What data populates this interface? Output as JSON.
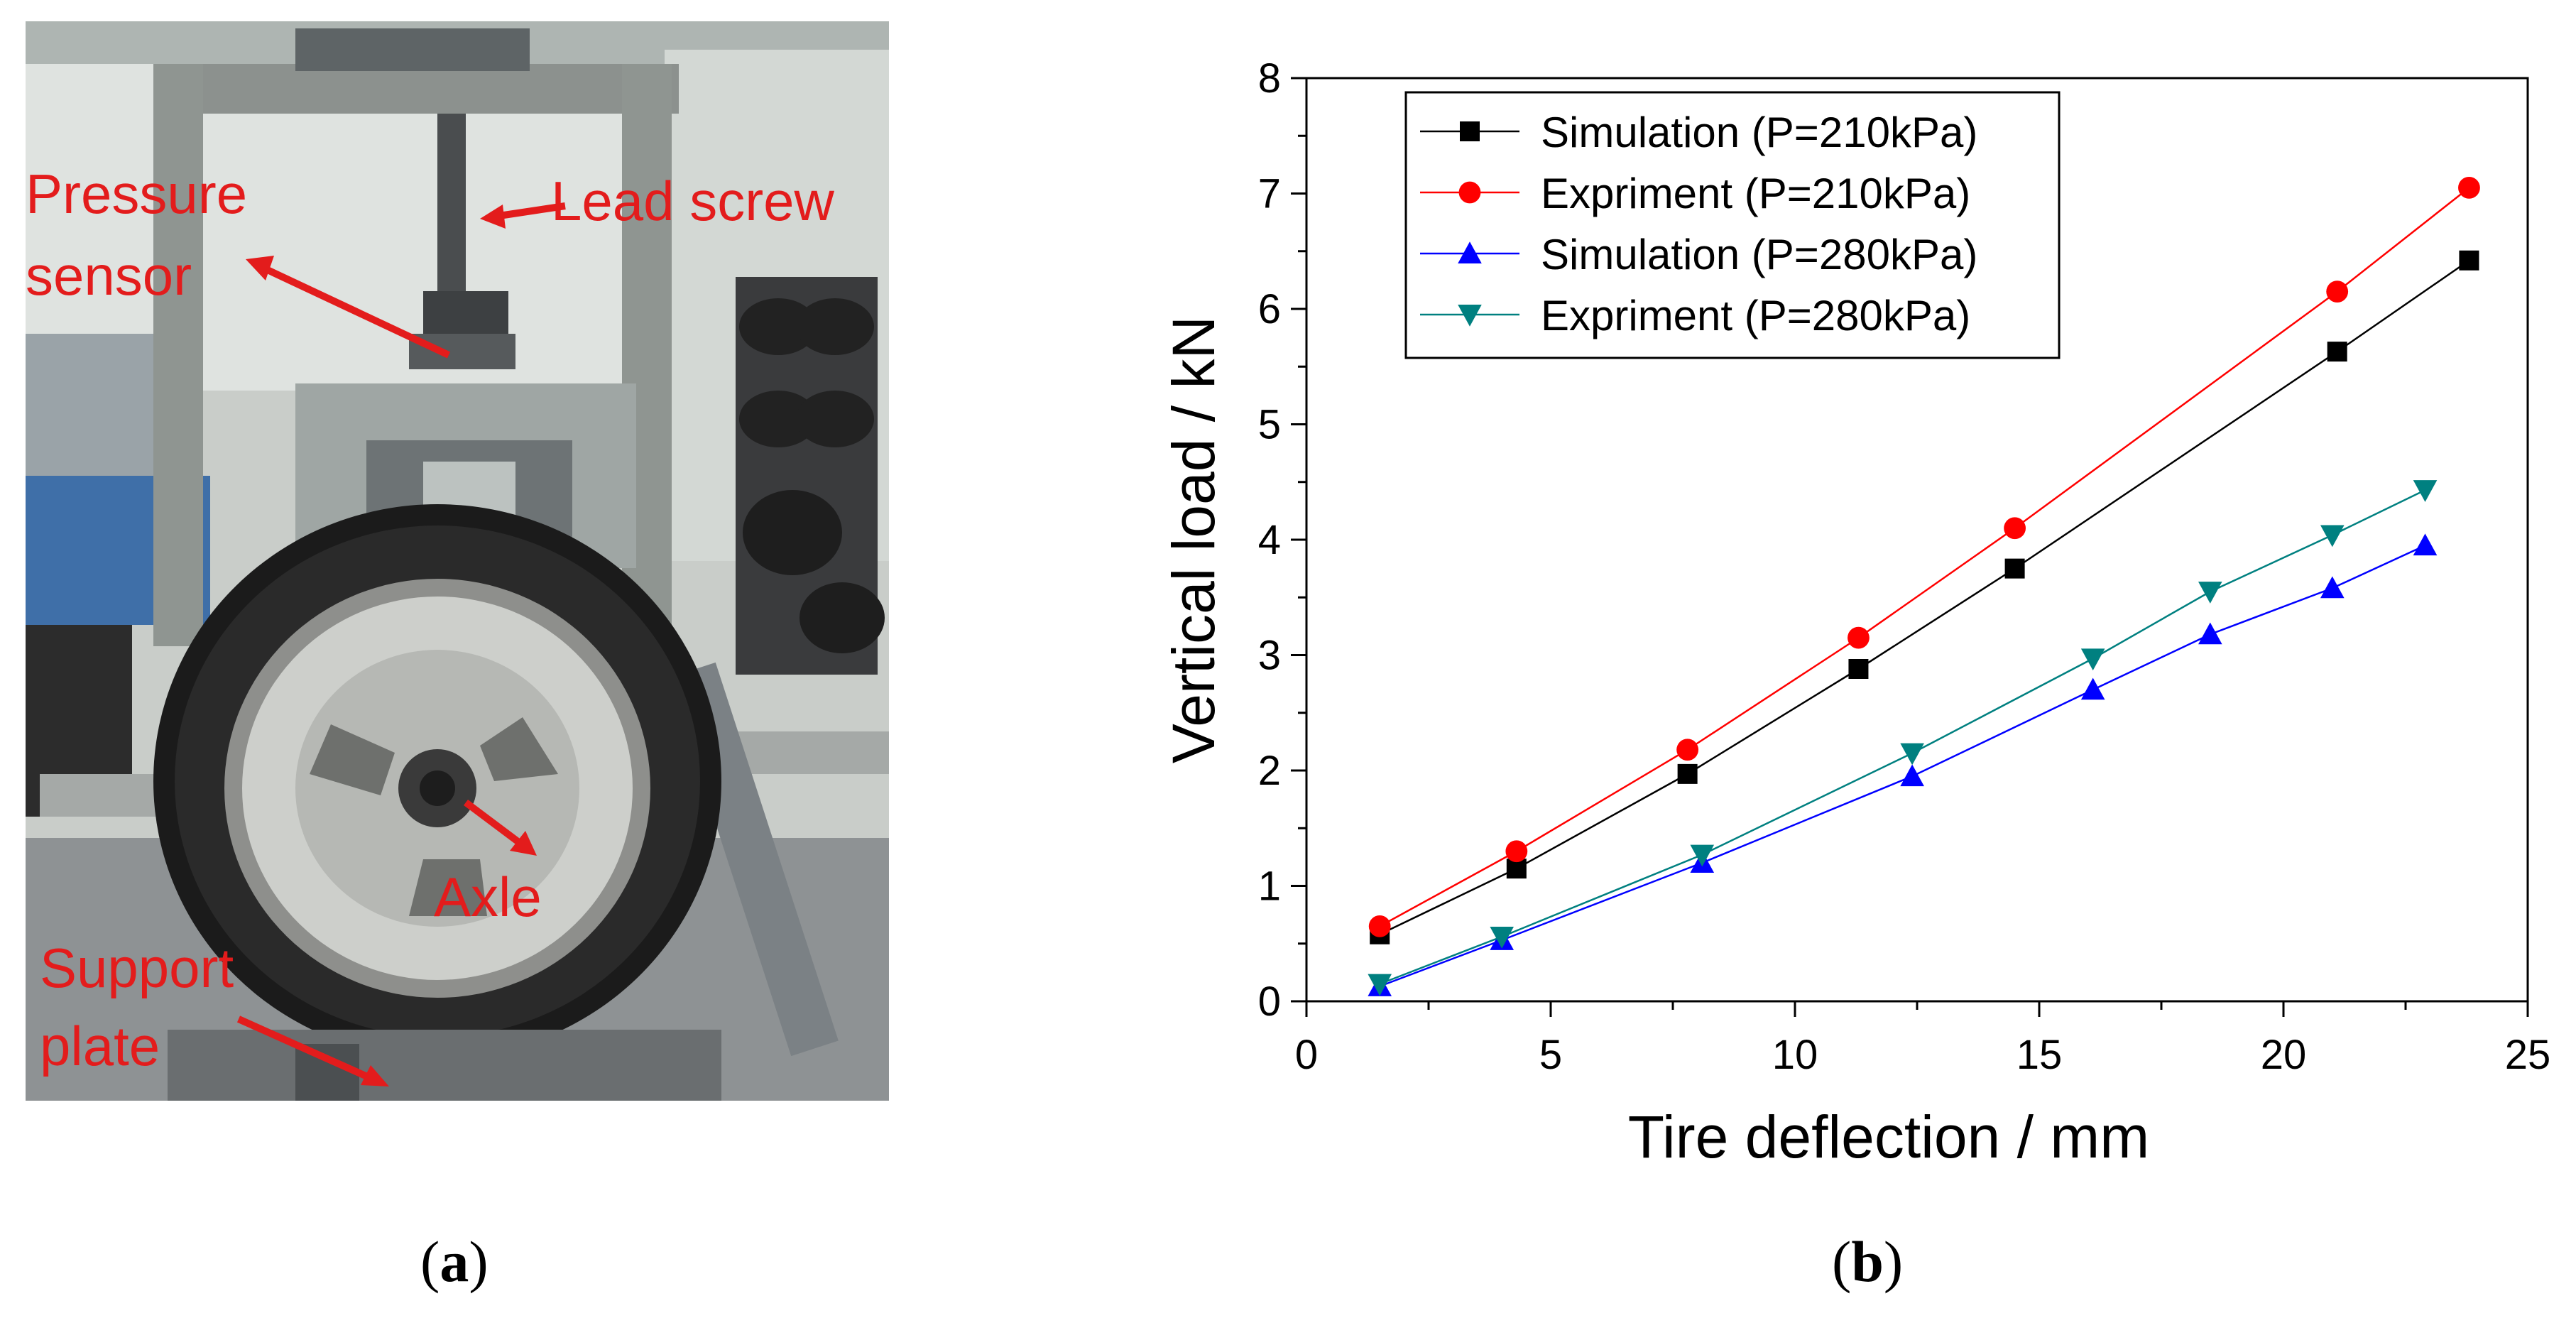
{
  "photo": {
    "labels": {
      "pressure_sensor_line1": "Pressure",
      "pressure_sensor_line2": "sensor",
      "lead_screw": "Lead screw",
      "axle": "Axle",
      "support_plate_line1": "Support",
      "support_plate_line2": "plate"
    },
    "colors": {
      "label": "#e31c1c"
    }
  },
  "captions": {
    "a": "a",
    "b": "b"
  },
  "chart_data": {
    "type": "line",
    "xlabel": "Tire deflection  / mm",
    "ylabel": "Vertical load  / kN",
    "xlim": [
      0,
      25
    ],
    "ylim": [
      0,
      8
    ],
    "xticks": [
      0,
      5,
      10,
      15,
      20,
      25
    ],
    "yticks": [
      0,
      1,
      2,
      3,
      4,
      5,
      6,
      7,
      8
    ],
    "grid": false,
    "legend_position": "top-left",
    "series": [
      {
        "name": "Simulation (P=210kPa)",
        "color": "#000000",
        "marker": "square",
        "x": [
          1.5,
          4.3,
          7.8,
          11.3,
          14.5,
          21.1,
          23.8
        ],
        "y": [
          0.58,
          1.15,
          1.97,
          2.88,
          3.75,
          5.63,
          6.42
        ]
      },
      {
        "name": "Expriment  (P=210kPa)",
        "color": "#ff0000",
        "marker": "circle",
        "x": [
          1.5,
          4.3,
          7.8,
          11.3,
          14.5,
          21.1,
          23.8
        ],
        "y": [
          0.65,
          1.3,
          2.18,
          3.15,
          4.1,
          6.15,
          7.05
        ]
      },
      {
        "name": "Simulation (P=280kPa)",
        "color": "#0000ff",
        "marker": "triangle-up",
        "x": [
          1.5,
          4.0,
          8.1,
          12.4,
          16.1,
          18.5,
          21.0,
          22.9
        ],
        "y": [
          0.13,
          0.53,
          1.2,
          1.95,
          2.7,
          3.18,
          3.58,
          3.95
        ]
      },
      {
        "name": "Expriment  (P=280kPa)",
        "color": "#008080",
        "marker": "triangle-down",
        "x": [
          1.5,
          4.0,
          8.1,
          12.4,
          16.1,
          18.5,
          21.0,
          22.9
        ],
        "y": [
          0.15,
          0.56,
          1.27,
          2.15,
          2.97,
          3.55,
          4.04,
          4.43
        ]
      }
    ]
  }
}
